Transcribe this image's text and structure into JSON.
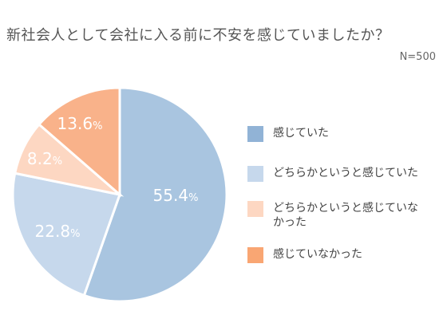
{
  "chart_data": {
    "type": "pie",
    "title": "新社会人として会社に入る前に不安を感じていましたか？",
    "note": "N=500",
    "slices": [
      {
        "label": "感じていた",
        "value": 55.4,
        "color": "#a9c5e0"
      },
      {
        "label": "どちらかというと感じていた",
        "value": 22.8,
        "color": "#c6d8ec"
      },
      {
        "label": "どちらかというと感じていなかった",
        "value": 8.2,
        "color": "#fdd7c2"
      },
      {
        "label": "感じていなかった",
        "value": 13.6,
        "color": "#f9b28a"
      }
    ],
    "legend_colors": [
      "#91b3d6",
      "#c6d8ec",
      "#fdd7c2",
      "#f9a673"
    ],
    "value_suffix": "%",
    "legend_position": "right"
  }
}
